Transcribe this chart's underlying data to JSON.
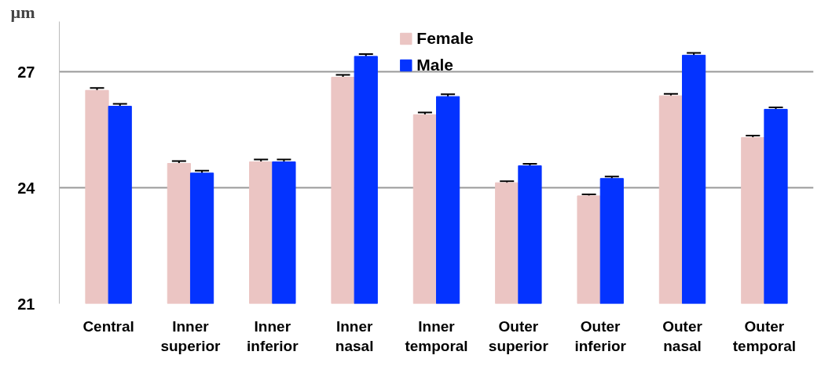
{
  "chart_data": {
    "type": "bar",
    "ylabel": "µm",
    "categories": [
      "Central",
      "Inner superior",
      "Inner inferior",
      "Inner nasal",
      "Inner temporal",
      "Outer superior",
      "Outer inferior",
      "Outer nasal",
      "Outer temporal"
    ],
    "series": [
      {
        "name": "Female",
        "color": "#ebc5c3",
        "values": [
          26.52,
          24.63,
          24.67,
          26.86,
          25.89,
          24.13,
          23.79,
          26.38,
          25.3
        ],
        "errors": [
          0.06,
          0.06,
          0.06,
          0.06,
          0.06,
          0.04,
          0.04,
          0.05,
          0.05
        ]
      },
      {
        "name": "Male",
        "color": "#0433ff",
        "values": [
          26.11,
          24.38,
          24.67,
          27.4,
          26.36,
          24.57,
          24.24,
          27.43,
          26.03
        ],
        "errors": [
          0.06,
          0.06,
          0.06,
          0.06,
          0.06,
          0.05,
          0.05,
          0.06,
          0.05
        ]
      }
    ],
    "ylim": [
      21,
      28.3
    ],
    "yticks": [
      21,
      24,
      27
    ],
    "grid": "y",
    "legend": "top"
  }
}
